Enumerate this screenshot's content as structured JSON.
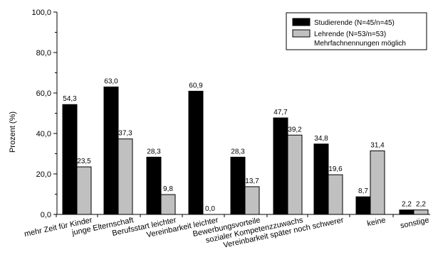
{
  "chart_data": {
    "type": "bar",
    "categories": [
      "mehr Zeit für Kinder",
      "junge Elternschaft",
      "Berufsstart leichter",
      "Vereinbarkeit leichter",
      "Bewerbungsvorteile",
      "sozialer Kompetenzzuwachs",
      "Vereinbarkeit später noch schwerer",
      "keine",
      "sonstige"
    ],
    "series": [
      {
        "name": "Studierende (N=45/n=45)",
        "values": [
          54.3,
          63.0,
          28.3,
          60.9,
          28.3,
          47.7,
          34.8,
          8.7,
          2.2
        ],
        "labels": [
          "54,3",
          "63,0",
          "28,3",
          "60,9",
          "28,3",
          "47,7",
          "34,8",
          "8,7",
          "2,2"
        ],
        "color": "#000000"
      },
      {
        "name": "Lehrende (N=53/n=53)",
        "values": [
          23.5,
          37.3,
          9.8,
          0.0,
          13.7,
          39.2,
          19.6,
          31.4,
          2.2
        ],
        "labels": [
          "23,5",
          "37,3",
          "9,8",
          "0,0",
          "13,7",
          "39,2",
          "19,6",
          "31,4",
          "2,2"
        ],
        "color": "#c0c0c0"
      }
    ],
    "title": "",
    "xlabel": "",
    "ylabel": "Prozent (%)",
    "ylim": [
      0,
      100
    ],
    "yticks": [
      0,
      20,
      40,
      60,
      80,
      100
    ],
    "ytick_labels": [
      "0,0",
      "20,0",
      "40,0",
      "60,0",
      "80,0",
      "100,0"
    ],
    "legend_note": "Mehrfachnennungen möglich",
    "legend_position": "top-right",
    "grid": false
  }
}
